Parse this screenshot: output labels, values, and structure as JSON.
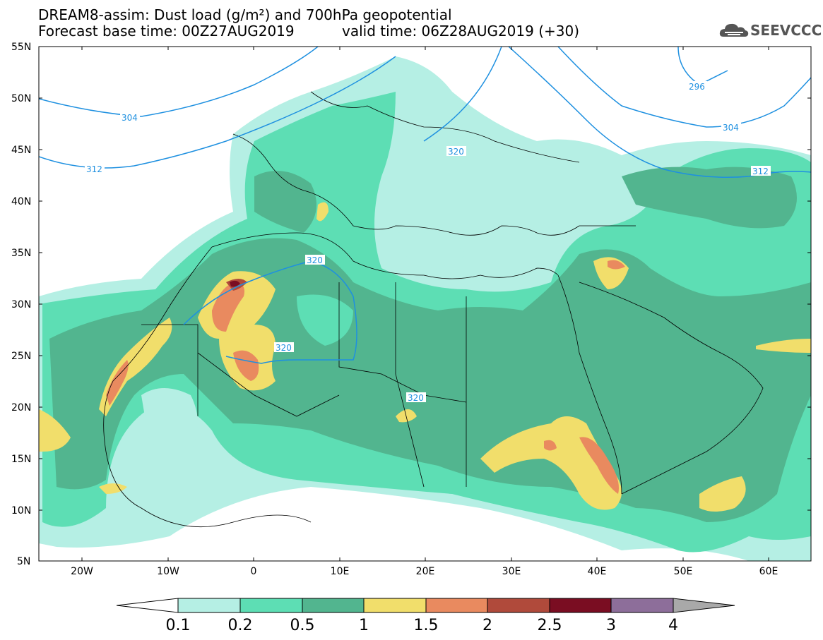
{
  "header": {
    "title_line1": "DREAM8-assim: Dust load (g/m²) and 700hPa geopotential",
    "title_line2_left": "Forecast base time: 00Z27AUG2019",
    "title_line2_right": "valid time: 06Z28AUG2019 (+30)",
    "logo_text": "SEEVCCC"
  },
  "map": {
    "lat_labels": [
      "55N",
      "50N",
      "45N",
      "40N",
      "35N",
      "30N",
      "25N",
      "20N",
      "15N",
      "10N",
      "5N"
    ],
    "lon_labels": [
      "20W",
      "10W",
      "0",
      "10E",
      "20E",
      "30E",
      "40E",
      "50E",
      "60E"
    ],
    "isoline_labels": [
      "304",
      "312",
      "320",
      "320",
      "320",
      "320",
      "296",
      "304",
      "312"
    ],
    "isoline_color": "#1e90e0"
  },
  "colorbar": {
    "labels": [
      "0.1",
      "0.2",
      "0.5",
      "1",
      "1.5",
      "2",
      "2.5",
      "3",
      "4"
    ],
    "colors": [
      "#b5efe4",
      "#5ddeb4",
      "#52b58f",
      "#f1de6b",
      "#e98a5f",
      "#b04a3b",
      "#7a0d22",
      "#8d6e9a"
    ],
    "under_color": "#ffffff",
    "over_color": "#a9a9a9"
  }
}
